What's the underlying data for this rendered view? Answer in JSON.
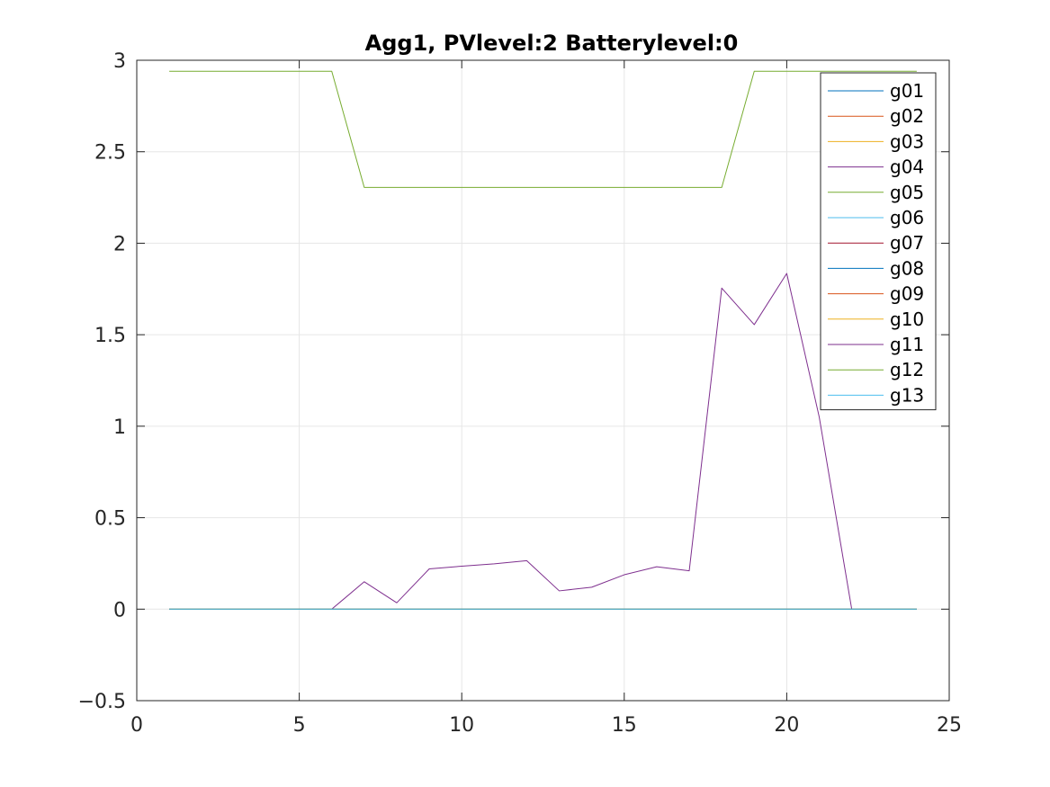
{
  "chart_data": {
    "type": "line",
    "title": "Agg1, PVlevel:2 Batterylevel:0",
    "xlabel": "",
    "ylabel": "",
    "xlim": [
      0,
      25
    ],
    "ylim": [
      -0.5,
      3
    ],
    "xticks": [
      0,
      5,
      10,
      15,
      20,
      25
    ],
    "yticks": [
      -0.5,
      0,
      0.5,
      1,
      1.5,
      2,
      2.5,
      3
    ],
    "xtick_labels": [
      "0",
      "5",
      "10",
      "15",
      "20",
      "25"
    ],
    "ytick_labels": [
      "−0.5",
      "0",
      "0.5",
      "1",
      "1.5",
      "2",
      "2.5",
      "3"
    ],
    "grid": true,
    "legend_position": "top-right",
    "x": [
      1,
      2,
      3,
      4,
      5,
      6,
      7,
      8,
      9,
      10,
      11,
      12,
      13,
      14,
      15,
      16,
      17,
      18,
      19,
      20,
      21,
      22,
      23,
      24
    ],
    "series": [
      {
        "name": "g01",
        "color": "#0072BD",
        "values": [
          0,
          0,
          0,
          0,
          0,
          0,
          0,
          0,
          0,
          0,
          0,
          0,
          0,
          0,
          0,
          0,
          0,
          0,
          0,
          0,
          0,
          0,
          0,
          0
        ]
      },
      {
        "name": "g02",
        "color": "#D95319",
        "values": [
          0,
          0,
          0,
          0,
          0,
          0,
          0,
          0,
          0,
          0,
          0,
          0,
          0,
          0,
          0,
          0,
          0,
          0,
          0,
          0,
          0,
          0,
          0,
          0
        ]
      },
      {
        "name": "g03",
        "color": "#EDB120",
        "values": [
          0,
          0,
          0,
          0,
          0,
          0,
          0,
          0,
          0,
          0,
          0,
          0,
          0,
          0,
          0,
          0,
          0,
          0,
          0,
          0,
          0,
          0,
          0,
          0
        ]
      },
      {
        "name": "g04",
        "color": "#7E2F8E",
        "values": [
          0,
          0,
          0,
          0,
          0,
          0,
          0.15,
          0.035,
          0.22,
          0.235,
          0.248,
          0.265,
          0.1,
          0.12,
          0.188,
          0.232,
          0.21,
          1.755,
          1.555,
          1.835,
          1.05,
          0,
          0,
          0
        ]
      },
      {
        "name": "g05",
        "color": "#77AC30",
        "values": [
          2.94,
          2.94,
          2.94,
          2.94,
          2.94,
          2.94,
          2.305,
          2.305,
          2.305,
          2.305,
          2.305,
          2.305,
          2.305,
          2.305,
          2.305,
          2.305,
          2.305,
          2.305,
          2.94,
          2.94,
          2.94,
          2.94,
          2.94,
          2.94
        ]
      },
      {
        "name": "g06",
        "color": "#4DBEEE",
        "values": [
          0,
          0,
          0,
          0,
          0,
          0,
          0,
          0,
          0,
          0,
          0,
          0,
          0,
          0,
          0,
          0,
          0,
          0,
          0,
          0,
          0,
          0,
          0,
          0
        ]
      },
      {
        "name": "g07",
        "color": "#A2142F",
        "values": [
          0,
          0,
          0,
          0,
          0,
          0,
          0,
          0,
          0,
          0,
          0,
          0,
          0,
          0,
          0,
          0,
          0,
          0,
          0,
          0,
          0,
          0,
          0,
          0
        ]
      },
      {
        "name": "g08",
        "color": "#0072BD",
        "values": [
          0,
          0,
          0,
          0,
          0,
          0,
          0,
          0,
          0,
          0,
          0,
          0,
          0,
          0,
          0,
          0,
          0,
          0,
          0,
          0,
          0,
          0,
          0,
          0
        ]
      },
      {
        "name": "g09",
        "color": "#D95319",
        "values": [
          0,
          0,
          0,
          0,
          0,
          0,
          0,
          0,
          0,
          0,
          0,
          0,
          0,
          0,
          0,
          0,
          0,
          0,
          0,
          0,
          0,
          0,
          0,
          0
        ]
      },
      {
        "name": "g10",
        "color": "#EDB120",
        "values": [
          0,
          0,
          0,
          0,
          0,
          0,
          0,
          0,
          0,
          0,
          0,
          0,
          0,
          0,
          0,
          0,
          0,
          0,
          0,
          0,
          0,
          0,
          0,
          0
        ]
      },
      {
        "name": "g11",
        "color": "#7E2F8E",
        "values": [
          0,
          0,
          0,
          0,
          0,
          0,
          0,
          0,
          0,
          0,
          0,
          0,
          0,
          0,
          0,
          0,
          0,
          0,
          0,
          0,
          0,
          0,
          0,
          0
        ]
      },
      {
        "name": "g12",
        "color": "#77AC30",
        "values": [
          0,
          0,
          0,
          0,
          0,
          0,
          0,
          0,
          0,
          0,
          0,
          0,
          0,
          0,
          0,
          0,
          0,
          0,
          0,
          0,
          0,
          0,
          0,
          0
        ]
      },
      {
        "name": "g13",
        "color": "#4DBEEE",
        "values": [
          0,
          0,
          0,
          0,
          0,
          0,
          0,
          0,
          0,
          0,
          0,
          0,
          0,
          0,
          0,
          0,
          0,
          0,
          0,
          0,
          0,
          0,
          0,
          0
        ]
      }
    ]
  }
}
